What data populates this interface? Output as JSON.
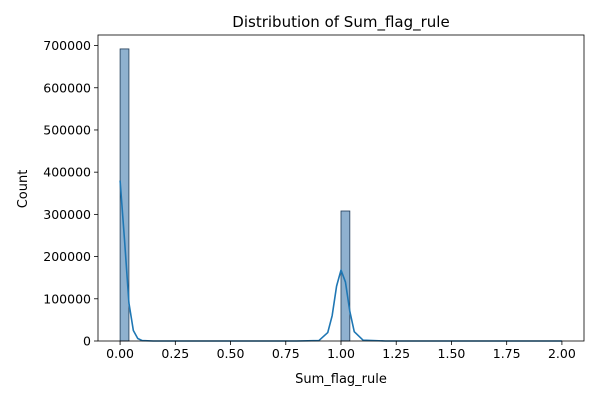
{
  "chart_data": {
    "type": "bar",
    "title": "Distribution of Sum_flag_rule",
    "xlabel": "Sum_flag_rule",
    "ylabel": "Count",
    "xlim": [
      -0.1,
      2.1
    ],
    "ylim": [
      0,
      725000
    ],
    "x_ticks": [
      0.0,
      0.25,
      0.5,
      0.75,
      1.0,
      1.25,
      1.5,
      1.75,
      2.0
    ],
    "x_tick_labels": [
      "0.00",
      "0.25",
      "0.50",
      "0.75",
      "1.00",
      "1.25",
      "1.50",
      "1.75",
      "2.00"
    ],
    "y_ticks": [
      0,
      100000,
      200000,
      300000,
      400000,
      500000,
      600000,
      700000
    ],
    "y_tick_labels": [
      "0",
      "100000",
      "200000",
      "300000",
      "400000",
      "500000",
      "600000",
      "700000"
    ],
    "bins": [
      {
        "x0": 0.0,
        "x1": 0.04,
        "count": 692000
      },
      {
        "x0": 1.0,
        "x1": 1.04,
        "count": 308000
      }
    ],
    "kde": {
      "x": [
        0.0,
        0.02,
        0.04,
        0.06,
        0.08,
        0.1,
        0.15,
        0.2,
        0.5,
        0.8,
        0.9,
        0.94,
        0.96,
        0.98,
        1.0,
        1.02,
        1.04,
        1.06,
        1.1,
        1.2,
        1.5,
        2.0
      ],
      "y": [
        380000,
        240000,
        90000,
        25000,
        6000,
        1000,
        0,
        0,
        0,
        0,
        1000,
        20000,
        60000,
        130000,
        168000,
        140000,
        70000,
        22000,
        2000,
        0,
        0,
        0
      ]
    },
    "grid": false,
    "legend": "none",
    "colors": {
      "bar_fill": "#8fb1cf",
      "bar_edge": "#1f3b57",
      "kde_line": "#1f77b4"
    }
  }
}
